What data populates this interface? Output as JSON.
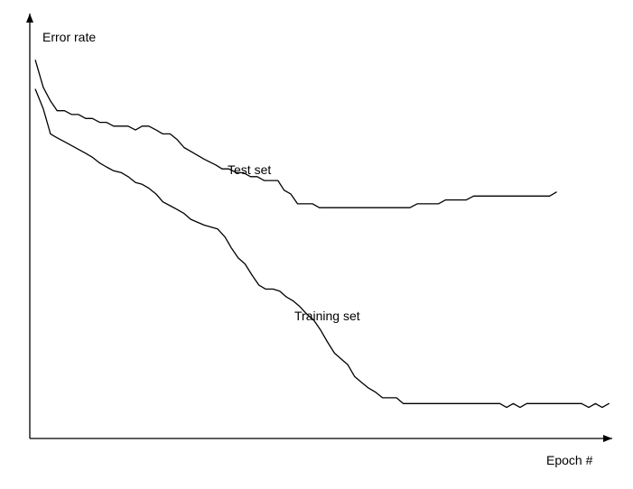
{
  "chart_data": {
    "type": "line",
    "title": "",
    "xlabel": "Epoch #",
    "ylabel": "Error rate",
    "grid": false,
    "legend": "none",
    "ticks": false,
    "xlim": [
      0,
      100
    ],
    "ylim": [
      0,
      100
    ],
    "series": [
      {
        "name": "Test set",
        "color": "#000000",
        "points": [
          [
            1.0,
            97.5
          ],
          [
            2.4,
            90.5
          ],
          [
            3.7,
            87.0
          ],
          [
            4.9,
            84.5
          ],
          [
            6.2,
            84.5
          ],
          [
            7.5,
            83.5
          ],
          [
            8.7,
            83.5
          ],
          [
            10.0,
            82.5
          ],
          [
            11.2,
            82.5
          ],
          [
            12.5,
            81.5
          ],
          [
            13.7,
            81.5
          ],
          [
            15.0,
            80.5
          ],
          [
            16.4,
            80.5
          ],
          [
            17.6,
            80.5
          ],
          [
            18.9,
            79.5
          ],
          [
            20.1,
            80.5
          ],
          [
            21.3,
            80.5
          ],
          [
            22.6,
            79.5
          ],
          [
            23.8,
            78.5
          ],
          [
            25.1,
            78.5
          ],
          [
            26.4,
            77.0
          ],
          [
            27.6,
            75.0
          ],
          [
            28.8,
            74.0
          ],
          [
            31.2,
            72.0
          ],
          [
            33.3,
            70.5
          ],
          [
            34.4,
            69.5
          ],
          [
            35.6,
            69.5
          ],
          [
            37.0,
            68.5
          ],
          [
            38.2,
            68.5
          ],
          [
            39.5,
            67.5
          ],
          [
            40.7,
            67.5
          ],
          [
            41.9,
            66.5
          ],
          [
            43.2,
            66.5
          ],
          [
            44.4,
            66.5
          ],
          [
            45.5,
            64.0
          ],
          [
            46.7,
            63.0
          ],
          [
            47.9,
            60.5
          ],
          [
            49.2,
            60.5
          ],
          [
            50.6,
            60.5
          ],
          [
            51.8,
            59.5
          ],
          [
            53.0,
            59.5
          ],
          [
            54.3,
            59.5
          ],
          [
            55.6,
            59.5
          ],
          [
            56.9,
            59.5
          ],
          [
            58.1,
            59.5
          ],
          [
            59.4,
            59.5
          ],
          [
            60.6,
            59.5
          ],
          [
            61.8,
            59.5
          ],
          [
            63.1,
            59.5
          ],
          [
            64.3,
            59.5
          ],
          [
            65.6,
            59.5
          ],
          [
            66.8,
            59.5
          ],
          [
            68.0,
            59.5
          ],
          [
            69.3,
            60.5
          ],
          [
            70.6,
            60.5
          ],
          [
            71.9,
            60.5
          ],
          [
            73.1,
            60.5
          ],
          [
            74.4,
            61.5
          ],
          [
            75.6,
            61.5
          ],
          [
            76.8,
            61.5
          ],
          [
            78.1,
            61.5
          ],
          [
            79.4,
            62.5
          ],
          [
            80.6,
            62.5
          ],
          [
            81.9,
            62.5
          ],
          [
            83.1,
            62.5
          ],
          [
            84.3,
            62.5
          ],
          [
            85.6,
            62.5
          ],
          [
            86.8,
            62.5
          ],
          [
            88.1,
            62.5
          ],
          [
            89.3,
            62.5
          ],
          [
            90.5,
            62.5
          ],
          [
            91.8,
            62.5
          ],
          [
            93.0,
            62.5
          ],
          [
            94.2,
            63.5
          ]
        ]
      },
      {
        "name": "Training set",
        "color": "#000000",
        "points": [
          [
            1.0,
            90.0
          ],
          [
            2.4,
            85.0
          ],
          [
            3.7,
            78.5
          ],
          [
            4.9,
            77.5
          ],
          [
            6.2,
            76.5
          ],
          [
            7.5,
            75.5
          ],
          [
            8.7,
            74.5
          ],
          [
            10.0,
            73.5
          ],
          [
            11.2,
            72.5
          ],
          [
            12.5,
            71.0
          ],
          [
            13.7,
            70.0
          ],
          [
            15.0,
            69.0
          ],
          [
            16.4,
            68.5
          ],
          [
            17.6,
            67.5
          ],
          [
            18.9,
            66.0
          ],
          [
            20.1,
            65.5
          ],
          [
            21.3,
            64.5
          ],
          [
            22.6,
            63.0
          ],
          [
            23.8,
            61.0
          ],
          [
            25.1,
            60.0
          ],
          [
            26.4,
            59.0
          ],
          [
            27.6,
            58.0
          ],
          [
            28.8,
            56.5
          ],
          [
            31.2,
            55.0
          ],
          [
            32.4,
            54.5
          ],
          [
            33.6,
            54.0
          ],
          [
            34.9,
            52.0
          ],
          [
            36.1,
            49.0
          ],
          [
            37.3,
            46.5
          ],
          [
            38.5,
            45.0
          ],
          [
            39.8,
            42.0
          ],
          [
            41.0,
            39.5
          ],
          [
            42.2,
            38.5
          ],
          [
            43.5,
            38.5
          ],
          [
            44.7,
            38.0
          ],
          [
            45.9,
            36.5
          ],
          [
            47.1,
            35.5
          ],
          [
            48.3,
            34.0
          ],
          [
            49.6,
            32.0
          ],
          [
            50.8,
            30.5
          ],
          [
            52.0,
            28.0
          ],
          [
            53.2,
            25.0
          ],
          [
            54.5,
            22.0
          ],
          [
            55.7,
            20.5
          ],
          [
            56.9,
            19.0
          ],
          [
            58.1,
            16.0
          ],
          [
            59.3,
            14.5
          ],
          [
            60.6,
            13.0
          ],
          [
            61.8,
            12.0
          ],
          [
            63.1,
            10.5
          ],
          [
            64.3,
            10.5
          ],
          [
            65.6,
            10.5
          ],
          [
            66.8,
            9.0
          ],
          [
            68.0,
            9.0
          ],
          [
            69.3,
            9.0
          ],
          [
            70.5,
            9.0
          ],
          [
            71.7,
            9.0
          ],
          [
            73.0,
            9.0
          ],
          [
            74.2,
            9.0
          ],
          [
            75.4,
            9.0
          ],
          [
            76.6,
            9.0
          ],
          [
            77.9,
            9.0
          ],
          [
            79.1,
            9.0
          ],
          [
            80.4,
            9.0
          ],
          [
            81.6,
            9.0
          ],
          [
            82.8,
            9.0
          ],
          [
            84.1,
            9.0
          ],
          [
            85.3,
            8.0
          ],
          [
            86.5,
            9.0
          ],
          [
            87.7,
            8.0
          ],
          [
            88.9,
            9.0
          ],
          [
            90.2,
            9.0
          ],
          [
            91.4,
            9.0
          ],
          [
            92.6,
            9.0
          ],
          [
            93.8,
            9.0
          ],
          [
            95.0,
            9.0
          ],
          [
            96.3,
            9.0
          ],
          [
            97.5,
            9.0
          ],
          [
            98.7,
            9.0
          ],
          [
            100.0,
            8.0
          ],
          [
            101.2,
            9.0
          ],
          [
            102.4,
            8.0
          ],
          [
            103.6,
            9.0
          ]
        ]
      }
    ]
  }
}
